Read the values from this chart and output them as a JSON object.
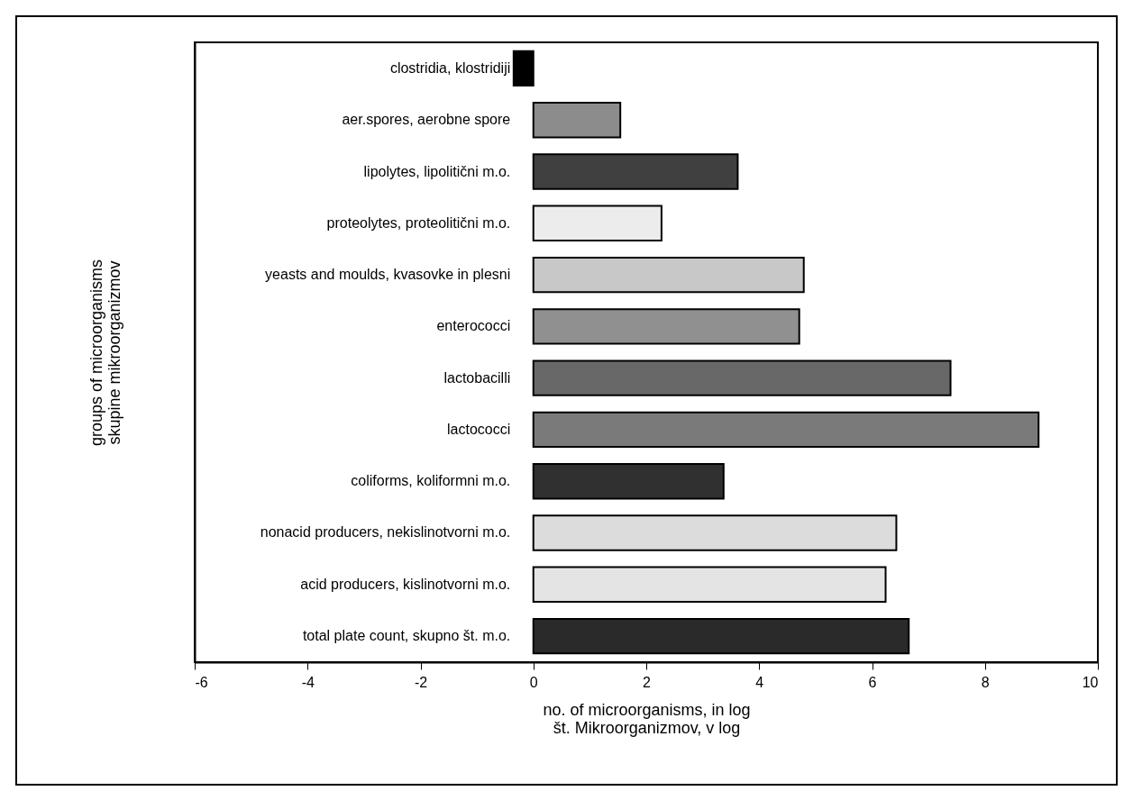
{
  "chart_data": {
    "type": "bar",
    "orientation": "horizontal",
    "xlabel": "no. of microorganisms, in log\nšt. Mikroorganizmov, v log",
    "ylabel": "groups of microorganisms\nskupine mikroorganizmov",
    "categories": [
      "clostridia, klostridiji",
      "aer.spores, aerobne spore",
      "lipolytes, lipolitični m.o.",
      "proteolytes, proteolitični m.o.",
      "yeasts and moulds, kvasovke in plesni",
      "enterococci",
      "lactobacilli",
      "lactococci",
      "coliforms, koliformni m.o.",
      "nonacid producers, nekislinotvorni m.o.",
      "acid producers, kislinotvorni m.o.",
      "total plate count, skupno št. m.o."
    ],
    "values": [
      -0.35,
      1.54,
      3.62,
      2.27,
      4.79,
      4.71,
      7.39,
      8.95,
      3.37,
      6.43,
      6.24,
      6.65
    ],
    "colors": [
      "#000000",
      "#8c8c8c",
      "#404040",
      "#ececec",
      "#c8c8c8",
      "#909090",
      "#686868",
      "#7a7a7a",
      "#303030",
      "#dcdcdc",
      "#e4e4e4",
      "#2a2a2a"
    ],
    "xlim": [
      -6,
      10
    ],
    "xticks": [
      -6,
      -4,
      -2,
      0,
      2,
      4,
      6,
      8,
      10
    ],
    "legend": false
  }
}
